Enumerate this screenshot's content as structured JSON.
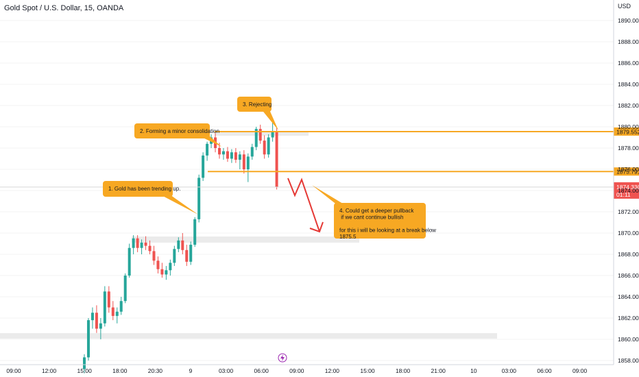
{
  "chart_data": {
    "type": "candlestick",
    "title": "Gold Spot / U.S. Dollar, 15, OANDA",
    "currency": "USD",
    "y_axis": {
      "range": [
        1857.5,
        1892
      ],
      "ticks": [
        1858,
        1860,
        1862,
        1864,
        1866,
        1868,
        1870,
        1872,
        1874,
        1876,
        1878,
        1880,
        1882,
        1884,
        1886,
        1888,
        1890
      ],
      "tick_labels": [
        "1858.000",
        "1860.000",
        "1862.000",
        "1864.000",
        "1866.000",
        "1868.000",
        "1870.000",
        "1872.000",
        "1874.000",
        "1876.000",
        "1878.000",
        "1880.000",
        "1882.000",
        "1884.000",
        "1886.000",
        "1888.000",
        "1890.000"
      ]
    },
    "x_axis": {
      "tick_labels": [
        "09:00",
        "12:00",
        "15:00",
        "18:00",
        "20:30",
        "9",
        "03:00",
        "06:00",
        "09:00",
        "12:00",
        "15:00",
        "18:00",
        "21:00",
        "10",
        "03:00",
        "06:00",
        "09:00"
      ]
    },
    "candles": [
      {
        "o": 1857.2,
        "h": 1858.6,
        "l": 1856.8,
        "c": 1858.3
      },
      {
        "o": 1858.3,
        "h": 1862.0,
        "l": 1858.0,
        "c": 1861.8
      },
      {
        "o": 1861.8,
        "h": 1863.0,
        "l": 1861.0,
        "c": 1862.5
      },
      {
        "o": 1862.5,
        "h": 1863.2,
        "l": 1860.6,
        "c": 1861.0
      },
      {
        "o": 1861.0,
        "h": 1862.0,
        "l": 1860.0,
        "c": 1861.5
      },
      {
        "o": 1861.5,
        "h": 1865.0,
        "l": 1861.2,
        "c": 1864.5
      },
      {
        "o": 1864.5,
        "h": 1865.0,
        "l": 1862.5,
        "c": 1863.0
      },
      {
        "o": 1863.0,
        "h": 1863.6,
        "l": 1861.8,
        "c": 1862.2
      },
      {
        "o": 1862.2,
        "h": 1863.0,
        "l": 1861.5,
        "c": 1862.6
      },
      {
        "o": 1862.6,
        "h": 1864.0,
        "l": 1862.3,
        "c": 1863.6
      },
      {
        "o": 1863.6,
        "h": 1866.2,
        "l": 1863.4,
        "c": 1866.0
      },
      {
        "o": 1866.0,
        "h": 1869.0,
        "l": 1865.8,
        "c": 1868.6
      },
      {
        "o": 1868.6,
        "h": 1869.8,
        "l": 1868.0,
        "c": 1869.5
      },
      {
        "o": 1869.5,
        "h": 1869.8,
        "l": 1868.2,
        "c": 1868.6
      },
      {
        "o": 1868.6,
        "h": 1869.4,
        "l": 1868.0,
        "c": 1869.1
      },
      {
        "o": 1869.1,
        "h": 1869.7,
        "l": 1868.4,
        "c": 1868.8
      },
      {
        "o": 1868.8,
        "h": 1869.3,
        "l": 1868.0,
        "c": 1868.3
      },
      {
        "o": 1868.3,
        "h": 1868.8,
        "l": 1867.0,
        "c": 1867.4
      },
      {
        "o": 1867.4,
        "h": 1867.8,
        "l": 1866.2,
        "c": 1866.6
      },
      {
        "o": 1866.6,
        "h": 1867.2,
        "l": 1865.8,
        "c": 1866.1
      },
      {
        "o": 1866.1,
        "h": 1866.9,
        "l": 1865.6,
        "c": 1866.5
      },
      {
        "o": 1866.5,
        "h": 1867.5,
        "l": 1866.0,
        "c": 1867.2
      },
      {
        "o": 1867.2,
        "h": 1868.8,
        "l": 1866.9,
        "c": 1868.5
      },
      {
        "o": 1868.5,
        "h": 1869.6,
        "l": 1868.2,
        "c": 1869.3
      },
      {
        "o": 1869.3,
        "h": 1870.0,
        "l": 1868.0,
        "c": 1868.4
      },
      {
        "o": 1868.4,
        "h": 1868.9,
        "l": 1866.9,
        "c": 1867.3
      },
      {
        "o": 1867.3,
        "h": 1869.2,
        "l": 1867.0,
        "c": 1868.9
      },
      {
        "o": 1868.9,
        "h": 1871.5,
        "l": 1868.7,
        "c": 1871.3
      },
      {
        "o": 1871.3,
        "h": 1875.5,
        "l": 1871.0,
        "c": 1875.2
      },
      {
        "o": 1875.2,
        "h": 1877.6,
        "l": 1874.9,
        "c": 1877.3
      },
      {
        "o": 1877.3,
        "h": 1878.6,
        "l": 1876.8,
        "c": 1878.4
      },
      {
        "o": 1878.4,
        "h": 1879.3,
        "l": 1878.0,
        "c": 1879.0
      },
      {
        "o": 1879.0,
        "h": 1879.4,
        "l": 1877.6,
        "c": 1878.0
      },
      {
        "o": 1878.0,
        "h": 1878.5,
        "l": 1877.0,
        "c": 1877.4
      },
      {
        "o": 1877.4,
        "h": 1878.0,
        "l": 1876.9,
        "c": 1877.7
      },
      {
        "o": 1877.7,
        "h": 1878.1,
        "l": 1876.7,
        "c": 1877.0
      },
      {
        "o": 1877.0,
        "h": 1877.9,
        "l": 1876.6,
        "c": 1877.6
      },
      {
        "o": 1877.6,
        "h": 1878.0,
        "l": 1876.6,
        "c": 1876.9
      },
      {
        "o": 1876.9,
        "h": 1877.7,
        "l": 1876.0,
        "c": 1877.4
      },
      {
        "o": 1877.4,
        "h": 1877.8,
        "l": 1875.6,
        "c": 1876.0
      },
      {
        "o": 1876.0,
        "h": 1877.5,
        "l": 1874.8,
        "c": 1877.2
      },
      {
        "o": 1877.2,
        "h": 1878.4,
        "l": 1876.9,
        "c": 1878.1
      },
      {
        "o": 1878.1,
        "h": 1880.0,
        "l": 1877.8,
        "c": 1879.8
      },
      {
        "o": 1879.8,
        "h": 1880.2,
        "l": 1878.4,
        "c": 1878.7
      },
      {
        "o": 1878.7,
        "h": 1879.2,
        "l": 1877.0,
        "c": 1877.4
      },
      {
        "o": 1877.4,
        "h": 1879.3,
        "l": 1877.1,
        "c": 1879.0
      },
      {
        "o": 1879.0,
        "h": 1880.8,
        "l": 1878.6,
        "c": 1879.6
      },
      {
        "o": 1879.6,
        "h": 1879.9,
        "l": 1874.1,
        "c": 1874.33
      }
    ],
    "colors": {
      "up": "#26a69a",
      "down": "#ef5350",
      "annotation": "#f7a823",
      "arrow": "#e53935",
      "zone": "#e6e6e6"
    },
    "levels": [
      {
        "label": "1879.552",
        "value": 1879.552
      },
      {
        "label": "1875.791",
        "value": 1875.791
      }
    ],
    "current_price": {
      "price": "1874.330",
      "countdown": "01:11",
      "value": 1874.33
    },
    "annotations": [
      "1. Gold has been trending up.",
      "2. Forming a minor consolidation",
      "3. Rejecting",
      "4. Could get a deeper pullback\n if we cant continue bullish\n\nfor this i will be looking at a break below\n1875.5"
    ]
  }
}
